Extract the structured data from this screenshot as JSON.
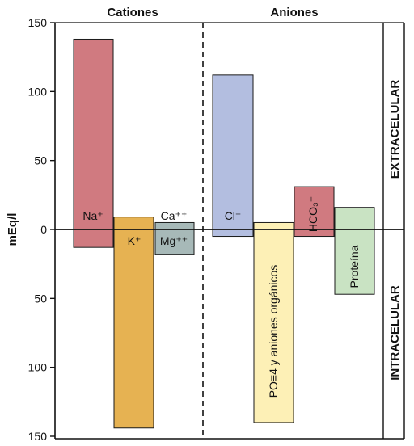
{
  "chart_data": {
    "type": "bar",
    "title": "",
    "ylabel": "mEq/l",
    "ylim": [
      -150,
      150
    ],
    "yticks": [
      {
        "value": 150,
        "label": "150"
      },
      {
        "value": 100,
        "label": "100"
      },
      {
        "value": 50,
        "label": "50"
      },
      {
        "value": 0,
        "label": "0"
      },
      {
        "value": -50,
        "label": "50"
      },
      {
        "value": -100,
        "label": "100"
      },
      {
        "value": -150,
        "label": "150"
      }
    ],
    "groups": [
      {
        "name": "Cationes",
        "header": "Cationes"
      },
      {
        "name": "Aniones",
        "header": "Aniones"
      }
    ],
    "regions": {
      "top": "EXTRACELULAR",
      "bottom": "INTRACELULAR"
    },
    "bars": [
      {
        "id": "na",
        "group": "Cationes",
        "label": "Na⁺",
        "extracellular": 138,
        "intracellular": 13,
        "color": "#d07a80"
      },
      {
        "id": "k",
        "group": "Cationes",
        "label": "K⁺",
        "extracellular": 9,
        "intracellular": 144,
        "color": "#e6b252"
      },
      {
        "id": "ca",
        "group": "Cationes",
        "label": "Ca⁺⁺",
        "extracellular": 5,
        "intracellular": 0,
        "color": "#a7b9b8"
      },
      {
        "id": "mg",
        "group": "Cationes",
        "label": "Mg⁺⁺",
        "extracellular": 0,
        "intracellular": 18,
        "color": "#a7b9b8"
      },
      {
        "id": "cl",
        "group": "Aniones",
        "label": "Cl⁻",
        "extracellular": 112,
        "intracellular": 5,
        "color": "#b3bee0"
      },
      {
        "id": "po4",
        "group": "Aniones",
        "label": "PO≡4 y aniones orgánicos",
        "extracellular": 5,
        "intracellular": 140,
        "color": "#fdf0b6"
      },
      {
        "id": "hco3",
        "group": "Aniones",
        "label": "HCO₃⁻",
        "extracellular": 31,
        "intracellular": 5,
        "color": "#d07a80"
      },
      {
        "id": "prot",
        "group": "Aniones",
        "label": "Proteína",
        "extracellular": 16,
        "intracellular": 47,
        "color": "#c9e3c3"
      }
    ]
  }
}
